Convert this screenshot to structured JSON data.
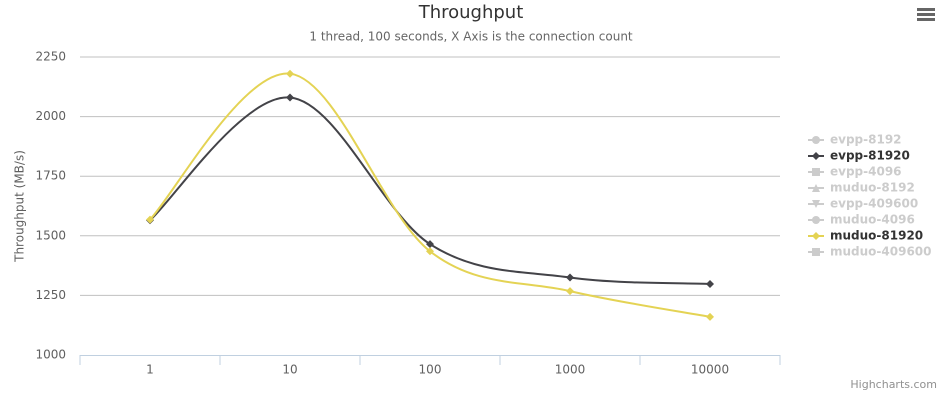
{
  "chart_data": {
    "type": "line",
    "smooth": true,
    "title": "Throughput",
    "subtitle": "1 thread, 100 seconds, X Axis is the connection count",
    "y_label": "Throughput (MB/s)",
    "credits": "Highcharts.com",
    "categories": [
      "1",
      "10",
      "100",
      "1000",
      "10000"
    ],
    "ylim": [
      1000,
      2250
    ],
    "yticks": [
      1000,
      1250,
      1500,
      1750,
      2000,
      2250
    ],
    "grid": true,
    "legend": "right",
    "series": [
      {
        "name": "evpp-8192",
        "color": "#7cb5ec",
        "marker": "circle",
        "visible": false,
        "values": [
          null,
          null,
          null,
          null,
          null
        ]
      },
      {
        "name": "evpp-81920",
        "color": "#434348",
        "marker": "diamond",
        "visible": true,
        "values": [
          1565,
          2080,
          1465,
          1325,
          1298
        ]
      },
      {
        "name": "evpp-4096",
        "color": "#90ed7d",
        "marker": "square",
        "visible": false,
        "values": [
          null,
          null,
          null,
          null,
          null
        ]
      },
      {
        "name": "muduo-8192",
        "color": "#f7a35c",
        "marker": "triangle",
        "visible": false,
        "values": [
          null,
          null,
          null,
          null,
          null
        ]
      },
      {
        "name": "evpp-409600",
        "color": "#8085e9",
        "marker": "triangle-down",
        "visible": false,
        "values": [
          null,
          null,
          null,
          null,
          null
        ]
      },
      {
        "name": "muduo-4096",
        "color": "#f15c80",
        "marker": "circle",
        "visible": false,
        "values": [
          null,
          null,
          null,
          null,
          null
        ]
      },
      {
        "name": "muduo-81920",
        "color": "#e4d354",
        "marker": "diamond",
        "visible": true,
        "values": [
          1568,
          2180,
          1435,
          1268,
          1160
        ]
      },
      {
        "name": "muduo-409600",
        "color": "#2b908f",
        "marker": "square",
        "visible": false,
        "values": [
          null,
          null,
          null,
          null,
          null
        ]
      }
    ]
  }
}
